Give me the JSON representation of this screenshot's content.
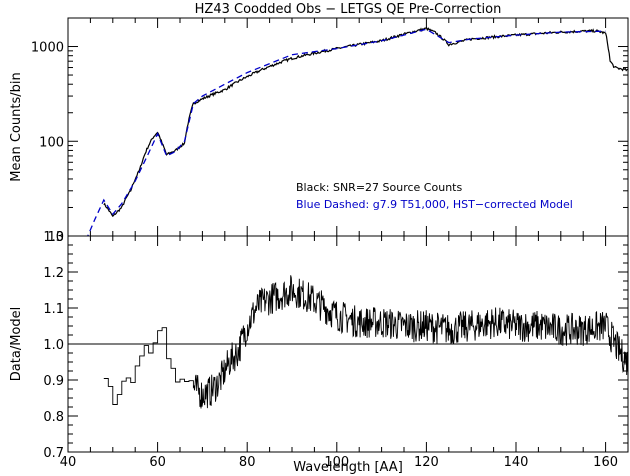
{
  "chart_data": [
    {
      "type": "line",
      "title": "HZ43 Coodded Obs − LETGS QE Pre-Correction",
      "xlabel": "",
      "ylabel": "Mean Counts/bin",
      "xlim": [
        40,
        165
      ],
      "ylim": [
        10,
        2000
      ],
      "yscale": "log",
      "yticks": [
        10,
        100,
        1000
      ],
      "ytick_labels": [
        "10",
        "100",
        "1000"
      ],
      "annotations": [
        {
          "text": "Black: SNR=27 Source Counts",
          "color": "#000000"
        },
        {
          "text": "Blue Dashed: g7.9 T51,000, HST−corrected Model",
          "color": "#0000c8"
        }
      ],
      "series": [
        {
          "name": "Source Counts",
          "color": "#000000",
          "style": "solid",
          "x": [
            48,
            50,
            52,
            54,
            56,
            58,
            59,
            60,
            61,
            62,
            64,
            66,
            67,
            68,
            70,
            75,
            80,
            90,
            100,
            110,
            115,
            120,
            122,
            125,
            130,
            140,
            150,
            155,
            158,
            160,
            161,
            162,
            165
          ],
          "y": [
            22,
            16,
            20,
            30,
            50,
            90,
            110,
            125,
            95,
            72,
            80,
            95,
            170,
            250,
            280,
            350,
            480,
            750,
            950,
            1150,
            1350,
            1550,
            1400,
            1050,
            1200,
            1320,
            1420,
            1450,
            1460,
            1380,
            700,
            600,
            560
          ]
        },
        {
          "name": "Model",
          "color": "#0000c8",
          "style": "dashed",
          "x": [
            44,
            46,
            48,
            50,
            52,
            55,
            58,
            60,
            62,
            64,
            66,
            68,
            70,
            75,
            80,
            90,
            100,
            110,
            120,
            125,
            130,
            140,
            150,
            160
          ],
          "y": [
            9,
            15,
            24,
            17,
            22,
            38,
            75,
            120,
            70,
            78,
            100,
            250,
            300,
            400,
            530,
            820,
            950,
            1150,
            1520,
            1100,
            1200,
            1320,
            1420,
            1450
          ]
        }
      ]
    },
    {
      "type": "line",
      "xlabel": "Wavelength [AA]",
      "ylabel": "Data/Model",
      "xlim": [
        40,
        165
      ],
      "ylim": [
        0.7,
        1.3
      ],
      "xticks": [
        40,
        60,
        80,
        100,
        120,
        140,
        160
      ],
      "xtick_labels": [
        "40",
        "60",
        "80",
        "100",
        "120",
        "140",
        "160"
      ],
      "yticks": [
        0.7,
        0.8,
        0.9,
        1.0,
        1.1,
        1.2,
        1.3
      ],
      "ytick_labels": [
        "0.7",
        "0.8",
        "0.9",
        "1.0",
        "1.1",
        "1.2",
        "1.3"
      ],
      "reference_line": 1.0,
      "series": [
        {
          "name": "Data/Model",
          "color": "#000000",
          "x": [
            48,
            50,
            52,
            54,
            56,
            58,
            60,
            61,
            62,
            64,
            66,
            68,
            70,
            72,
            74,
            76,
            78,
            80,
            82,
            84,
            86,
            88,
            90,
            92,
            95,
            100,
            105,
            110,
            115,
            120,
            125,
            130,
            135,
            140,
            145,
            150,
            155,
            160,
            163,
            165
          ],
          "y": [
            0.9,
            0.85,
            0.9,
            0.92,
            0.95,
            1.0,
            1.03,
            1.05,
            0.97,
            0.92,
            0.9,
            0.88,
            0.86,
            0.87,
            0.9,
            0.95,
            0.98,
            1.05,
            1.1,
            1.12,
            1.13,
            1.14,
            1.15,
            1.14,
            1.12,
            1.08,
            1.06,
            1.06,
            1.05,
            1.05,
            1.04,
            1.05,
            1.06,
            1.05,
            1.05,
            1.04,
            1.04,
            1.05,
            0.98,
            0.95
          ],
          "noise": 0.045,
          "noise_start": 68
        }
      ]
    }
  ]
}
